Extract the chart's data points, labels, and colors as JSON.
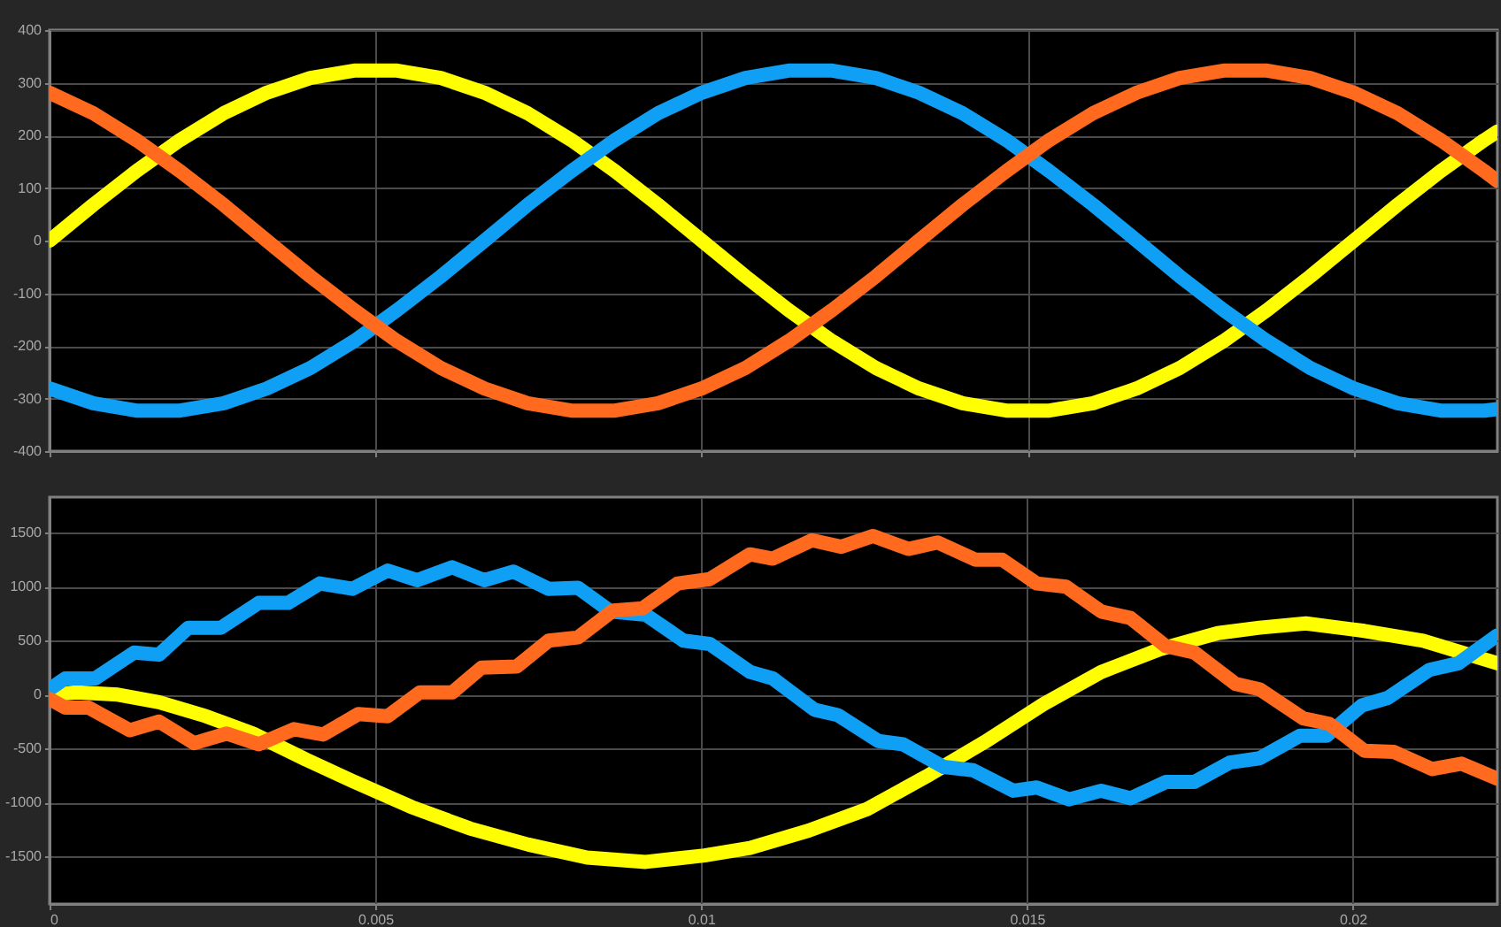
{
  "chart_data": [
    {
      "type": "line",
      "x": [
        0,
        0.00067,
        0.00133,
        0.002,
        0.00267,
        0.00333,
        0.004,
        0.00467,
        0.00533,
        0.006,
        0.00667,
        0.00733,
        0.008,
        0.00867,
        0.00933,
        0.01,
        0.01067,
        0.01133,
        0.012,
        0.01267,
        0.01333,
        0.014,
        0.01467,
        0.01533,
        0.016,
        0.01667,
        0.01733,
        0.018,
        0.01867,
        0.01933,
        0.02,
        0.02067,
        0.02133,
        0.022,
        0.0222
      ],
      "series": [
        {
          "color": "#ffff00",
          "values": [
            0,
            68,
            132,
            191,
            242,
            281,
            309,
            323,
            323,
            309,
            281,
            242,
            191,
            132,
            68,
            0,
            -68,
            -132,
            -191,
            -242,
            -281,
            -309,
            -323,
            -323,
            -309,
            -281,
            -242,
            -191,
            -132,
            -68,
            0,
            68,
            132,
            191,
            207
          ]
        },
        {
          "color": "#0fa0f5",
          "values": [
            -281,
            -309,
            -323,
            -323,
            -309,
            -281,
            -242,
            -191,
            -132,
            -68,
            0,
            68,
            132,
            191,
            242,
            281,
            309,
            323,
            323,
            309,
            281,
            242,
            191,
            132,
            68,
            0,
            -68,
            -132,
            -191,
            -242,
            -281,
            -309,
            -323,
            -323,
            -320
          ]
        },
        {
          "color": "#ff6a1f",
          "values": [
            281,
            242,
            191,
            132,
            68,
            0,
            -68,
            -132,
            -191,
            -242,
            -281,
            -309,
            -323,
            -323,
            -309,
            -281,
            -242,
            -191,
            -132,
            -68,
            0,
            68,
            132,
            191,
            242,
            281,
            309,
            323,
            323,
            309,
            281,
            242,
            191,
            132,
            113
          ]
        }
      ],
      "xlim": [
        0,
        0.0222
      ],
      "xticks": [
        0,
        0.005,
        0.01,
        0.015,
        0.02
      ],
      "ylim": [
        -400,
        400
      ],
      "yticks": [
        -400,
        -300,
        -200,
        -100,
        0,
        100,
        200,
        300,
        400
      ],
      "grid": true,
      "tick_labels": "y"
    },
    {
      "type": "line",
      "series": [
        {
          "color": "#ffff00",
          "x": [
            0,
            0.00042,
            0.00105,
            0.00168,
            0.0024,
            0.00312,
            0.00393,
            0.00465,
            0.00555,
            0.00645,
            0.00735,
            0.00825,
            0.00915,
            0.01005,
            0.01075,
            0.01165,
            0.01255,
            0.01345,
            0.01435,
            0.01525,
            0.01614,
            0.01704,
            0.01793,
            0.01857,
            0.01928,
            0.02018,
            0.02108,
            0.02222
          ],
          "values": [
            0,
            20,
            0,
            -70,
            -200,
            -360,
            -600,
            -800,
            -1040,
            -1240,
            -1390,
            -1510,
            -1550,
            -1490,
            -1420,
            -1260,
            -1060,
            -760,
            -440,
            -90,
            210,
            420,
            570,
            620,
            660,
            590,
            500,
            290
          ]
        },
        {
          "color": "#0fa0f5",
          "x": [
            0,
            0.00024,
            0.0007,
            0.0013,
            0.00168,
            0.00213,
            0.00263,
            0.00321,
            0.00366,
            0.00415,
            0.00465,
            0.00519,
            0.00564,
            0.00618,
            0.00667,
            0.00712,
            0.00766,
            0.00811,
            0.00861,
            0.00915,
            0.00973,
            0.01013,
            0.01075,
            0.0111,
            0.01174,
            0.0121,
            0.01272,
            0.0131,
            0.01372,
            0.01417,
            0.01479,
            0.01515,
            0.01565,
            0.01614,
            0.01659,
            0.01713,
            0.01757,
            0.01811,
            0.01857,
            0.01919,
            0.0196,
            0.02014,
            0.02054,
            0.02118,
            0.02162,
            0.02222
          ],
          "values": [
            50,
            150,
            150,
            390,
            370,
            620,
            620,
            850,
            850,
            1030,
            980,
            1150,
            1060,
            1180,
            1060,
            1140,
            980,
            990,
            770,
            740,
            500,
            470,
            210,
            150,
            -140,
            -190,
            -430,
            -460,
            -670,
            -700,
            -890,
            -860,
            -970,
            -890,
            -960,
            -810,
            -810,
            -630,
            -590,
            -380,
            -380,
            -100,
            -30,
            230,
            290,
            550
          ]
        },
        {
          "color": "#ff6a1f",
          "x": [
            0,
            0.00024,
            0.0006,
            0.00123,
            0.00168,
            0.00222,
            0.00272,
            0.00321,
            0.00375,
            0.0042,
            0.00474,
            0.00519,
            0.00568,
            0.00618,
            0.00663,
            0.00717,
            0.00766,
            0.00811,
            0.00865,
            0.0091,
            0.00964,
            0.01013,
            0.01075,
            0.0111,
            0.0117,
            0.01215,
            0.01264,
            0.01318,
            0.01363,
            0.01421,
            0.01462,
            0.01515,
            0.0156,
            0.01614,
            0.01659,
            0.01713,
            0.01757,
            0.0182,
            0.01857,
            0.01924,
            0.01964,
            0.02018,
            0.02063,
            0.02122,
            0.02167,
            0.02222
          ],
          "values": [
            -40,
            -120,
            -120,
            -330,
            -250,
            -450,
            -360,
            -460,
            -320,
            -370,
            -180,
            -200,
            20,
            20,
            250,
            260,
            500,
            530,
            780,
            800,
            1030,
            1070,
            1300,
            1260,
            1430,
            1370,
            1470,
            1350,
            1410,
            1250,
            1250,
            1030,
            1000,
            770,
            710,
            450,
            390,
            100,
            50,
            -220,
            -270,
            -520,
            -530,
            -690,
            -640,
            -780
          ]
        }
      ],
      "xlim": [
        0,
        0.02222
      ],
      "xticks": [
        0,
        0.005,
        0.01,
        0.015,
        0.02
      ],
      "ylim": [
        -1940,
        1830
      ],
      "yticks": [
        -1500,
        -1000,
        -500,
        0,
        500,
        1000,
        1500
      ],
      "grid": true
    }
  ]
}
